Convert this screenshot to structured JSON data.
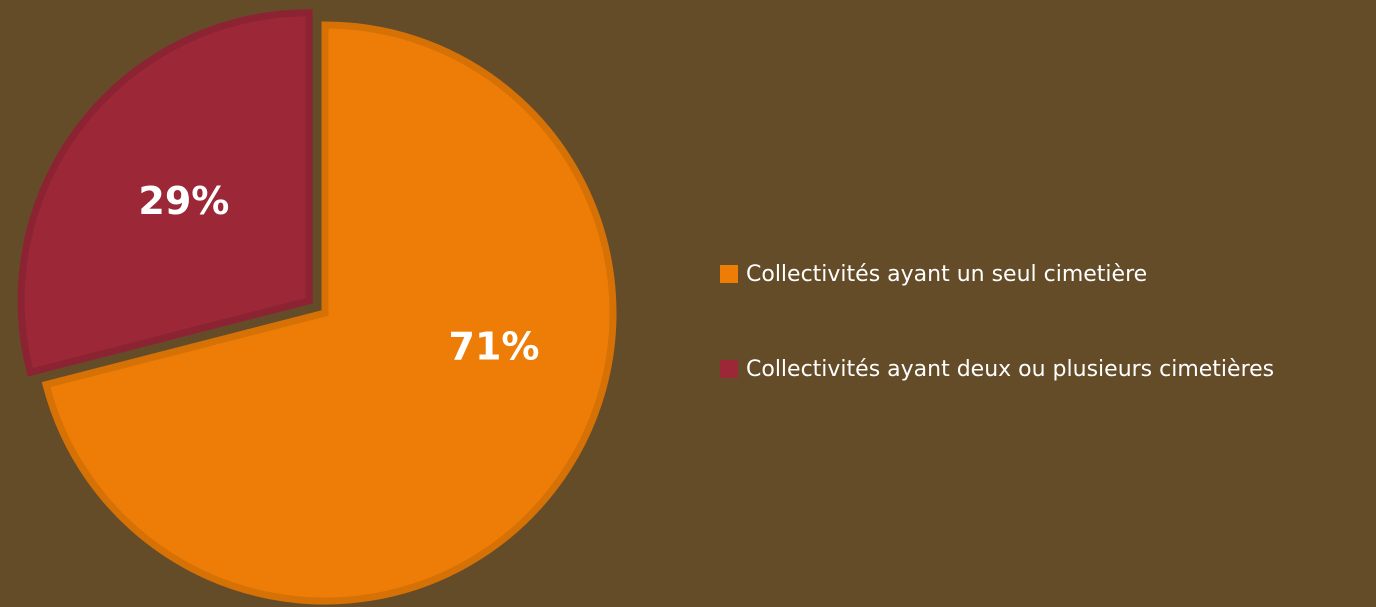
{
  "chart_data": {
    "type": "pie",
    "categories": [
      "Collectivités ayant un seul cimetière",
      "Collectivités ayant deux ou plusieurs cimetières"
    ],
    "values": [
      71,
      29
    ],
    "value_labels": [
      "71%",
      "29%"
    ],
    "colors": [
      "#ee7d07",
      "#9c2737"
    ],
    "legend": "right"
  }
}
